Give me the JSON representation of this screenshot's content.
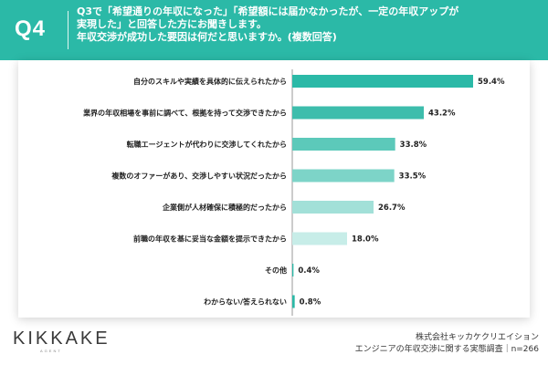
{
  "header": {
    "badge": "Q4",
    "question_lines": [
      "Q3で「希望通りの年収になった」「希望額には届かなかったが、一定の年収アップが",
      "実現した」と回答した方にお聞きします。",
      "年収交渉が成功した要因は何だと思いますか。(複数回答)"
    ]
  },
  "colors": {
    "header_bg": "#2bb9a7",
    "bar_colors": [
      "#2bb9a7",
      "#3dbdac",
      "#5cc9ba",
      "#7dd4c8",
      "#a2e0d8",
      "#c7ede8",
      "#2bb9a7",
      "#2bb9a7"
    ]
  },
  "chart_data": {
    "type": "bar",
    "orientation": "horizontal",
    "categories": [
      "自分のスキルや実績を具体的に伝えられたから",
      "業界の年収相場を事前に調べて、根拠を持って交渉できたから",
      "転職エージェントが代わりに交渉してくれたから",
      "複数のオファーがあり、交渉しやすい状況だったから",
      "企業側が人材確保に積極的だったから",
      "前職の年収を基に妥当な金額を提示できたから",
      "その他",
      "わからない/答えられない"
    ],
    "values": [
      59.4,
      43.2,
      33.8,
      33.5,
      26.7,
      18.0,
      0.4,
      0.8
    ],
    "value_labels": [
      "59.4%",
      "43.2%",
      "33.8%",
      "33.5%",
      "26.7%",
      "18.0%",
      "0.4%",
      "0.8%"
    ],
    "xlim": [
      0,
      60
    ]
  },
  "footer": {
    "logo": "KIKKAKE",
    "logo_sub": "AGENT",
    "company": "株式会社キッカケクリエイション",
    "survey": "エンジニアの年収交渉に関する実態調査｜n=266"
  }
}
